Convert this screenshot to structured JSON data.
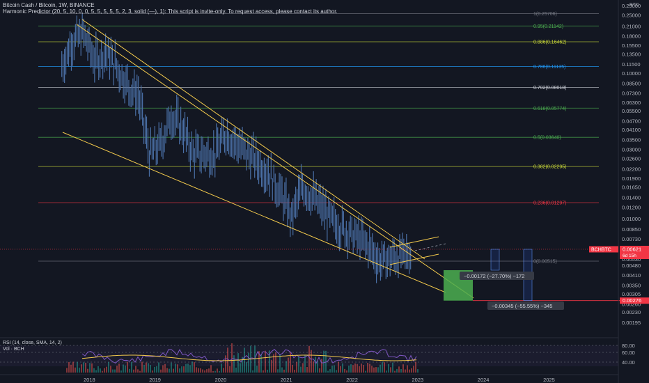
{
  "header": {
    "line1": "Bitcoin Cash / Bitcoin, 1W, BINANCE",
    "line2": "Harmonic Predictor (20, 5, 10, 0, 0, 5, 5, 5, 5, 5, 2, 3, solid (—), 1): This script is invite-only. To request access, please contact its author."
  },
  "axis_unit": "BTC",
  "price_labels": [
    "0.34000",
    "0.29000",
    "0.25000",
    "0.21000",
    "0.18000",
    "0.15500",
    "0.13500",
    "0.11500",
    "0.10000",
    "0.08500",
    "0.07300",
    "0.06300",
    "0.05500",
    "0.04700",
    "0.04100",
    "0.03500",
    "0.03000",
    "0.02600",
    "0.02200",
    "0.01900",
    "0.01650",
    "0.01400",
    "0.01200",
    "0.01000",
    "0.00850",
    "0.00730",
    "0.00630",
    "0.00530",
    "0.00480",
    "0.00410",
    "0.00350",
    "0.00305",
    "0.00260",
    "0.00230",
    "0.00195",
    "0.00174",
    "0.00152"
  ],
  "current_price": {
    "ticker": "BCHBTC",
    "value": "0.00621",
    "countdown": "6d 15h"
  },
  "target_price": "0.00276",
  "fib_levels": [
    {
      "label": "1(0.25706)",
      "value": 0.25706,
      "color": "#787b86"
    },
    {
      "label": "0.95(0.21142)",
      "value": 0.21142,
      "color": "#4caf50"
    },
    {
      "label": "0.886(0.16462)",
      "value": 0.16462,
      "color": "#cddc39"
    },
    {
      "label": "0.786(0.11135)",
      "value": 0.11135,
      "color": "#2196f3"
    },
    {
      "label": "0.702(0.08018)",
      "value": 0.08018,
      "color": "#d1d4dc"
    },
    {
      "label": "0.618(0.05774)",
      "value": 0.05774,
      "color": "#4caf50"
    },
    {
      "label": "0.5(0.03640)",
      "value": 0.0364,
      "color": "#4caf50"
    },
    {
      "label": "0.382(0.02295)",
      "value": 0.02295,
      "color": "#cddc39"
    },
    {
      "label": "0.236(0.01297)",
      "value": 0.01297,
      "color": "#f23645"
    },
    {
      "label": "0(0.00515)",
      "value": 0.00515,
      "color": "#787b86"
    }
  ],
  "measure_labels": {
    "short": "−0.00172 (−27.70%) −172",
    "long": "−0.00345 (−55.55%) −345"
  },
  "indicators": {
    "rsi_label": "RSI (14, close, SMA, 14, 2)",
    "vol_label": "Vol · BCH",
    "rsi_ticks": [
      "80.00",
      "60.00",
      "40.00"
    ]
  },
  "x_axis_labels": [
    "2018",
    "2019",
    "2020",
    "2021",
    "2022",
    "2023",
    "2024",
    "2025"
  ],
  "colors": {
    "background": "#131722",
    "candle": "#4a6fa5",
    "trendline": "#f2c94c",
    "target_box": "#4caf50",
    "current_price_tag": "#f23645"
  },
  "chart_data": {
    "type": "line",
    "title": "Bitcoin Cash / Bitcoin, 1W, BINANCE",
    "ylabel": "BTC",
    "y_scale": "log",
    "ylim": [
      0.00152,
      0.34
    ],
    "x": [
      "2017-08",
      "2017-10",
      "2017-12",
      "2018-02",
      "2018-04",
      "2018-06",
      "2018-08",
      "2018-10",
      "2018-12",
      "2019-02",
      "2019-04",
      "2019-06",
      "2019-08",
      "2019-10",
      "2019-12",
      "2020-02",
      "2020-04",
      "2020-06",
      "2020-08",
      "2020-10",
      "2020-12",
      "2021-02",
      "2021-04",
      "2021-06",
      "2021-08",
      "2021-10",
      "2021-12",
      "2022-02",
      "2022-04",
      "2022-06",
      "2022-08",
      "2022-10",
      "2022-12"
    ],
    "series": [
      {
        "values": [
          0.12,
          0.18,
          0.2,
          0.13,
          0.15,
          0.12,
          0.09,
          0.075,
          0.03,
          0.035,
          0.055,
          0.045,
          0.03,
          0.03,
          0.03,
          0.042,
          0.035,
          0.03,
          0.026,
          0.022,
          0.016,
          0.011,
          0.018,
          0.015,
          0.012,
          0.01,
          0.009,
          0.008,
          0.007,
          0.0055,
          0.0058,
          0.006,
          0.0062
        ]
      }
    ],
    "grid": false
  }
}
